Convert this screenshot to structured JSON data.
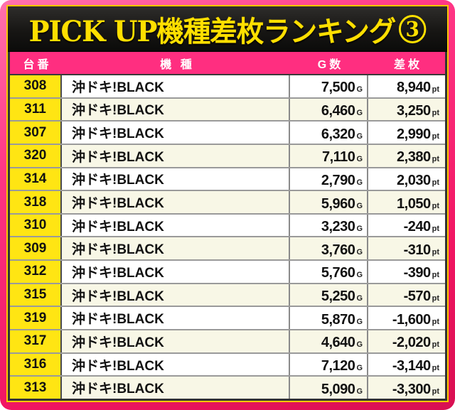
{
  "title": {
    "text": "PICK UP機種差枚ランキング",
    "badge": "3"
  },
  "table": {
    "columns": [
      "台番",
      "機 種",
      "G数",
      "差枚"
    ],
    "g_suffix": "G",
    "pt_suffix": "pt",
    "rows": [
      {
        "dai": "308",
        "kishu": "沖ドキ!BLACK",
        "g": "7,500",
        "pt": "8,940"
      },
      {
        "dai": "311",
        "kishu": "沖ドキ!BLACK",
        "g": "6,460",
        "pt": "3,250"
      },
      {
        "dai": "307",
        "kishu": "沖ドキ!BLACK",
        "g": "6,320",
        "pt": "2,990"
      },
      {
        "dai": "320",
        "kishu": "沖ドキ!BLACK",
        "g": "7,110",
        "pt": "2,380"
      },
      {
        "dai": "314",
        "kishu": "沖ドキ!BLACK",
        "g": "2,790",
        "pt": "2,030"
      },
      {
        "dai": "318",
        "kishu": "沖ドキ!BLACK",
        "g": "5,960",
        "pt": "1,050"
      },
      {
        "dai": "310",
        "kishu": "沖ドキ!BLACK",
        "g": "3,230",
        "pt": "-240"
      },
      {
        "dai": "309",
        "kishu": "沖ドキ!BLACK",
        "g": "3,760",
        "pt": "-310"
      },
      {
        "dai": "312",
        "kishu": "沖ドキ!BLACK",
        "g": "5,760",
        "pt": "-390"
      },
      {
        "dai": "315",
        "kishu": "沖ドキ!BLACK",
        "g": "5,250",
        "pt": "-570"
      },
      {
        "dai": "319",
        "kishu": "沖ドキ!BLACK",
        "g": "5,870",
        "pt": "-1,600"
      },
      {
        "dai": "317",
        "kishu": "沖ドキ!BLACK",
        "g": "4,640",
        "pt": "-2,020"
      },
      {
        "dai": "316",
        "kishu": "沖ドキ!BLACK",
        "g": "7,120",
        "pt": "-3,140"
      },
      {
        "dai": "313",
        "kishu": "沖ドキ!BLACK",
        "g": "5,090",
        "pt": "-3,300"
      }
    ]
  },
  "colors": {
    "frame_pink": "#ff2e80",
    "frame_pink_dark": "#d80f52",
    "gold_border": "#ffc800",
    "header_pink": "#ff2e80",
    "banner_black": "#141414",
    "title_yellow": "#ffdf00",
    "machine_number_yellow": "#ffe513",
    "row_white": "#ffffff",
    "row_cream": "#f8f7e6",
    "text_black": "#111111",
    "header_text_white": "#ffffff"
  }
}
